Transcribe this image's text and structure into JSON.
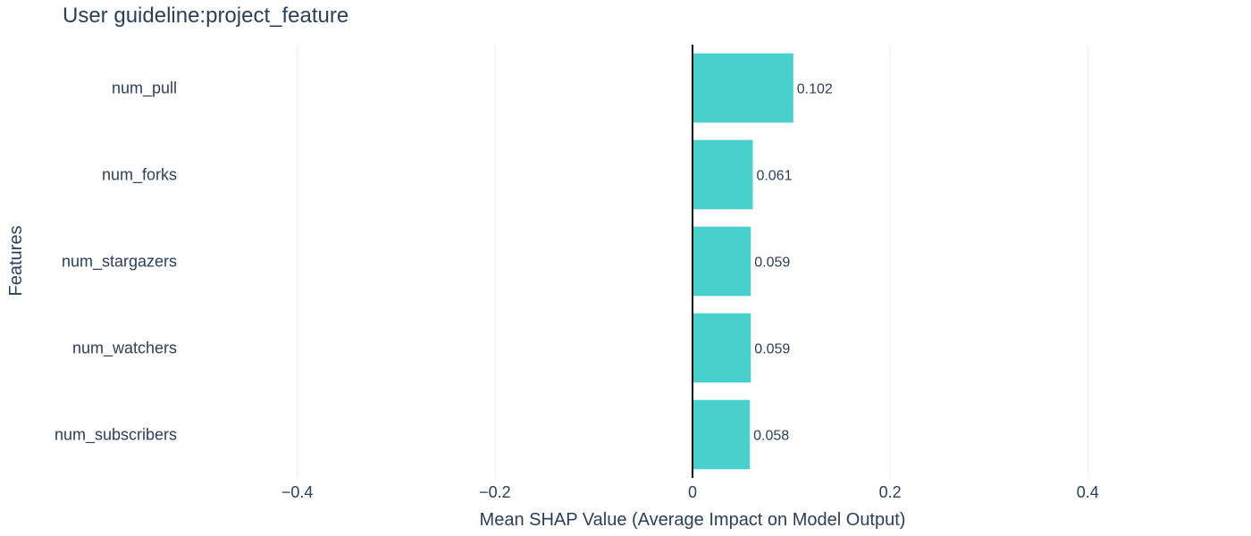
{
  "chart_data": {
    "type": "bar",
    "orientation": "horizontal",
    "title": "User guideline:project_feature",
    "xlabel": "Mean SHAP Value (Average Impact on Model Output)",
    "ylabel": "Features",
    "categories": [
      "num_pull",
      "num_forks",
      "num_stargazers",
      "num_watchers",
      "num_subscribers"
    ],
    "values": [
      0.102,
      0.061,
      0.059,
      0.059,
      0.058
    ],
    "data_labels": [
      "0.102",
      "0.061",
      "0.059",
      "0.059",
      "0.058"
    ],
    "xlim": [
      -0.52,
      0.52
    ],
    "xticks": [
      -0.4,
      -0.2,
      0,
      0.2,
      0.4
    ],
    "xtick_labels": [
      "−0.4",
      "−0.2",
      "0",
      "0.2",
      "0.4"
    ],
    "bar_color": "#48d1cc",
    "grid": true,
    "legend": "none"
  }
}
